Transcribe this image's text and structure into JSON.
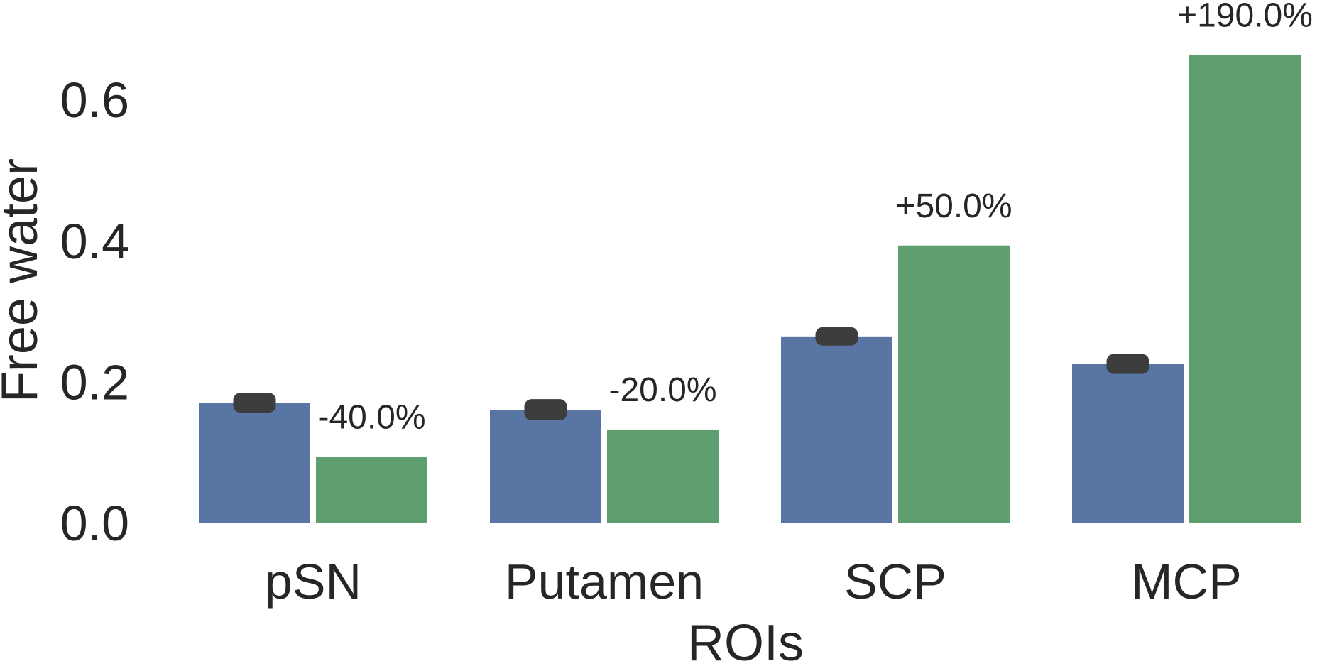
{
  "chart_data": {
    "type": "bar",
    "title": "",
    "xlabel": "ROIs",
    "ylabel": "Free water",
    "ylim": [
      0,
      0.7
    ],
    "yticks": [
      "0.0",
      "0.2",
      "0.4",
      "0.6"
    ],
    "categories": [
      "pSN",
      "Putamen",
      "SCP",
      "MCP"
    ],
    "series": [
      {
        "color": "#5975a4",
        "values": [
          0.17,
          0.16,
          0.264,
          0.225
        ],
        "error": [
          0.008,
          0.009,
          0.007,
          0.008
        ]
      },
      {
        "color": "#5f9e6e",
        "values": [
          0.093,
          0.132,
          0.393,
          0.663
        ]
      }
    ],
    "annotations": [
      "-40.0%",
      "-20.0%",
      "+50.0%",
      "+190.0%"
    ],
    "grid": false,
    "legend": "none",
    "error_bar_color": "#3d3d3d"
  }
}
